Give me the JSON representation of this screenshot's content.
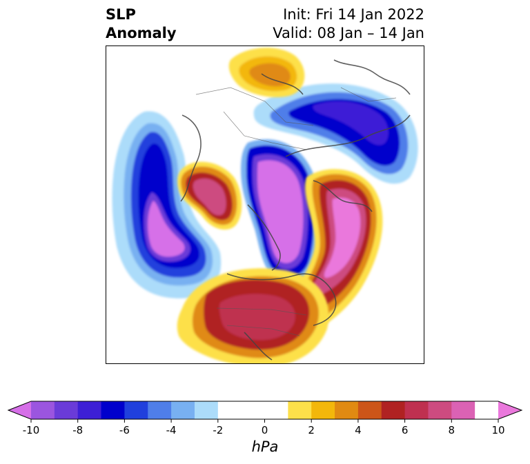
{
  "header": {
    "left_line1": "SLP",
    "left_line2": "Anomaly",
    "right_line1": "Init: Fri 14 Jan 2022",
    "right_line2": "Valid: 08 Jan – 14 Jan"
  },
  "colorbar": {
    "unit": "hPa",
    "tick_labels": [
      "-10",
      "-8",
      "-6",
      "-4",
      "-2",
      "0",
      "2",
      "4",
      "6",
      "8",
      "10"
    ],
    "levels": [
      -10,
      -9,
      -8,
      -7,
      -6,
      -5,
      -4,
      -3,
      -2,
      -1,
      1,
      2,
      3,
      4,
      5,
      6,
      7,
      8,
      9,
      10
    ],
    "colors": [
      "#d66fe8",
      "#9b55df",
      "#6a3bd8",
      "#3d1fd6",
      "#0000cc",
      "#2040dd",
      "#4f7ee9",
      "#78b0f1",
      "#acdcfa",
      "#ffffff",
      "#ffffff",
      "#fde04a",
      "#f3b70b",
      "#e08a12",
      "#cc5518",
      "#b02222",
      "#bf3050",
      "#cd4b80",
      "#db62b4",
      "#ea78dc"
    ],
    "extend": "both"
  },
  "map": {
    "projection": "north-polar-stereographic",
    "features": [
      {
        "name": "negative-anomaly-north-pacific",
        "sign": "negative",
        "min_hpa": -10
      },
      {
        "name": "negative-anomaly-arctic",
        "sign": "negative",
        "min_hpa": -10
      },
      {
        "name": "negative-anomaly-siberia",
        "sign": "negative",
        "min_hpa": -7
      },
      {
        "name": "positive-anomaly-alaska",
        "sign": "positive",
        "max_hpa": 8
      },
      {
        "name": "positive-anomaly-north-america",
        "sign": "positive",
        "max_hpa": 8
      },
      {
        "name": "positive-anomaly-northern-europe",
        "sign": "positive",
        "max_hpa": 10
      },
      {
        "name": "positive-anomaly-central-asia",
        "sign": "positive",
        "max_hpa": 4
      }
    ]
  }
}
